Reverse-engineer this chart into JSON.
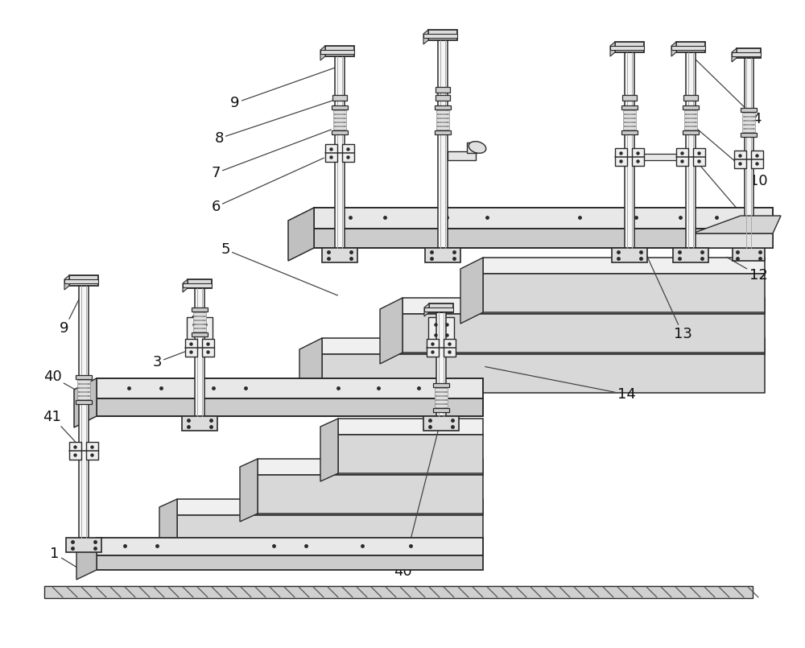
{
  "bg_color": "#ffffff",
  "lc": "#2a2a2a",
  "step_top": "#f0f0f0",
  "step_front": "#d8d8d8",
  "step_side": "#c8c8c8",
  "plate_top": "#e8e8e8",
  "plate_front": "#cccccc",
  "post_fill": "#f4f4f4",
  "clamp_fill": "#eeeeee",
  "ground_fill": "#c8c8c8",
  "label_fs": 13
}
